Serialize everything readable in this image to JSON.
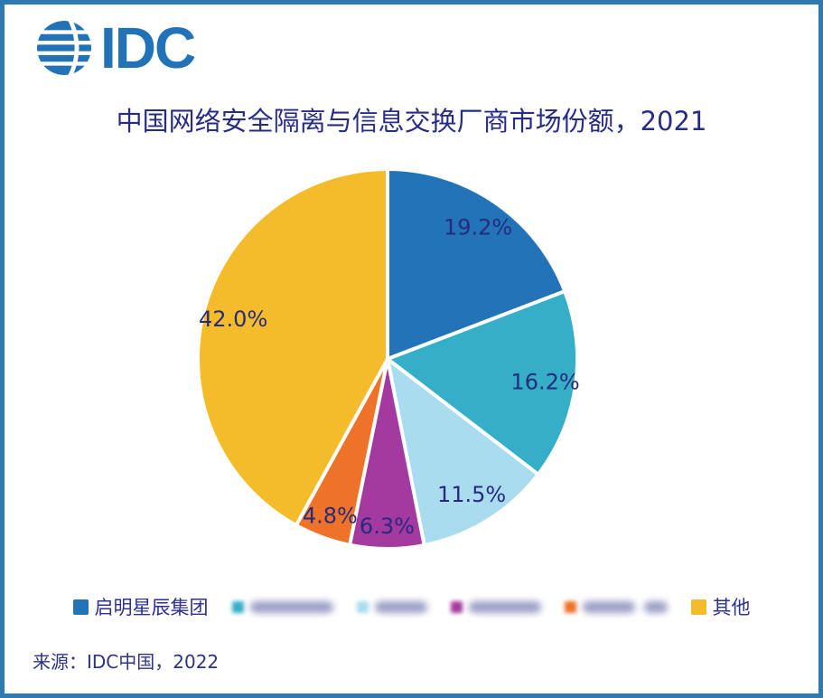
{
  "brand": {
    "logo_text": "IDC",
    "logo_color": "#2272B8"
  },
  "title": {
    "text": "中国网络安全隔离与信息交换厂商市场份额，2021"
  },
  "chart_data": {
    "type": "pie",
    "title": "中国网络安全隔离与信息交换厂商市场份额，2021",
    "unit": "%",
    "direction": "clockwise",
    "start_angle_deg": 0,
    "label_color": "#272A7D",
    "legend_position": "bottom",
    "slices": [
      {
        "label": "启明星辰集团",
        "redacted": false,
        "value": 19.2,
        "display": "19.2%",
        "color": "#2273B8"
      },
      {
        "label": "",
        "redacted": true,
        "value": 16.2,
        "display": "16.2%",
        "color": "#35AEC8"
      },
      {
        "label": "",
        "redacted": true,
        "value": 11.5,
        "display": "11.5%",
        "color": "#A9DCEE"
      },
      {
        "label": "",
        "redacted": true,
        "value": 6.3,
        "display": "6.3%",
        "color": "#A4399F"
      },
      {
        "label": "",
        "redacted": true,
        "value": 4.8,
        "display": "4.8%",
        "color": "#EE7227"
      },
      {
        "label": "其他",
        "redacted": false,
        "value": 42.0,
        "display": "42.0%",
        "color": "#F4BB2B"
      }
    ]
  },
  "legend": {
    "items": [
      {
        "label": "启明星辰集团",
        "color": "#2273B8",
        "redacted": false,
        "blob_widths": []
      },
      {
        "label": "",
        "color": "#35AEC8",
        "redacted": true,
        "blob_widths": [
          92
        ]
      },
      {
        "label": "",
        "color": "#A9DCEE",
        "redacted": true,
        "blob_widths": [
          58
        ]
      },
      {
        "label": "",
        "color": "#A4399F",
        "redacted": true,
        "blob_widths": [
          80
        ]
      },
      {
        "label": "",
        "color": "#EE7227",
        "redacted": true,
        "blob_widths": [
          58,
          26
        ]
      },
      {
        "label": "其他",
        "color": "#F4BB2B",
        "redacted": false,
        "blob_widths": []
      }
    ]
  },
  "source": {
    "text": "来源：IDC中国，2022"
  }
}
